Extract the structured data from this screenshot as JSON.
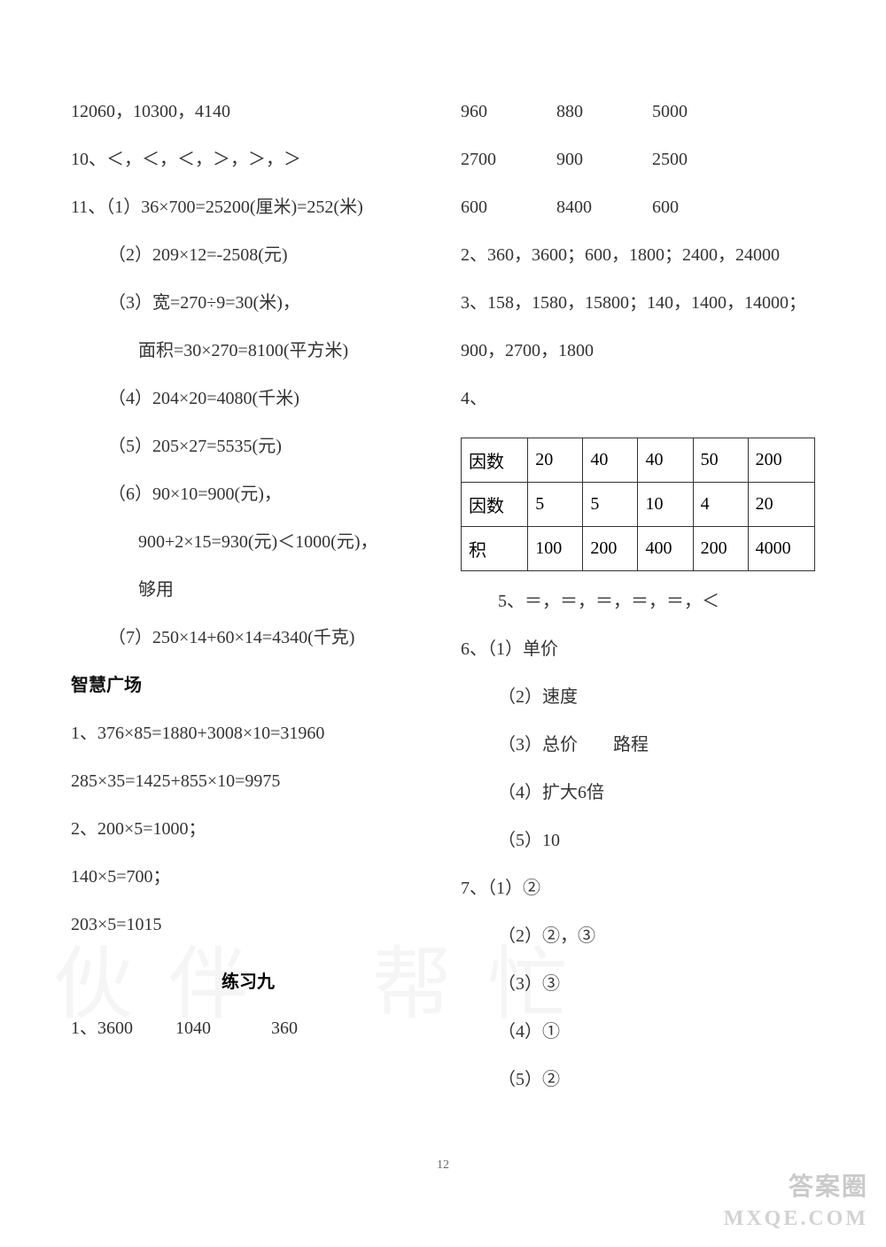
{
  "left_column": {
    "lines": [
      {
        "text": "12060，10300，4140",
        "indent": 0
      },
      {
        "text": "10、＜，＜，＜，＞，＞，＞",
        "indent": 0
      },
      {
        "text": "11、（1）36×700=25200(厘米)=252(米)",
        "indent": 0
      },
      {
        "text": "（2）209×12=-2508(元)",
        "indent": 1
      },
      {
        "text": "（3）宽=270÷9=30(米)，",
        "indent": 1
      },
      {
        "text": "面积=30×270=8100(平方米)",
        "indent": 2
      },
      {
        "text": "（4）204×20=4080(千米)",
        "indent": 1
      },
      {
        "text": "（5）205×27=5535(元)",
        "indent": 1
      },
      {
        "text": "（6）90×10=900(元)，",
        "indent": 1
      },
      {
        "text": "900+2×15=930(元)＜1000(元)，",
        "indent": 2
      },
      {
        "text": "够用",
        "indent": 2
      },
      {
        "text": "（7）250×14+60×14=4340(千克)",
        "indent": 1
      }
    ],
    "section_bold": "智慧广场",
    "after_bold": [
      {
        "text": "1、376×85=1880+3008×10=31960",
        "indent": 0
      },
      {
        "text": "285×35=1425+855×10=9975",
        "indent": 0
      },
      {
        "text": "2、200×5=1000；",
        "indent": 0
      },
      {
        "text": "140×5=700；",
        "indent": 0
      },
      {
        "text": "203×5=1015",
        "indent": 0
      }
    ],
    "section_title": "练习九",
    "last_row": [
      "1、3600",
      "1040",
      "360"
    ]
  },
  "right_column": {
    "num_rows": [
      [
        "960",
        "880",
        "5000"
      ],
      [
        "2700",
        "900",
        "2500"
      ],
      [
        "600",
        "8400",
        "600"
      ]
    ],
    "line2": "2、360，3600；600，1800；2400，24000",
    "line3a": "3、158，1580，15800；140，1400，14000；",
    "line3b": "900，2700，1800",
    "line4_label": "4、",
    "table": {
      "rows": [
        [
          "因数",
          "20",
          "40",
          "40",
          "50",
          "200"
        ],
        [
          "因数",
          "5",
          "5",
          "10",
          "4",
          "20"
        ],
        [
          "积",
          "100",
          "200",
          "400",
          "200",
          "4000"
        ]
      ]
    },
    "line5": "5、＝，＝，＝，＝，＝，＜",
    "line6": "6、（1）单价",
    "sub6": [
      "（2）速度",
      "（3）总价　　路程",
      "（4）扩大6倍",
      "（5）10"
    ],
    "line7": "7、（1）②",
    "sub7": [
      "（2）②，③",
      "（3）③",
      "（4）①",
      "（5）②"
    ]
  },
  "page_number": "12",
  "watermark1": "伙伴",
  "watermark2": "帮忙",
  "badge_text": "答案圈",
  "badge_url": "MXQE.COM"
}
